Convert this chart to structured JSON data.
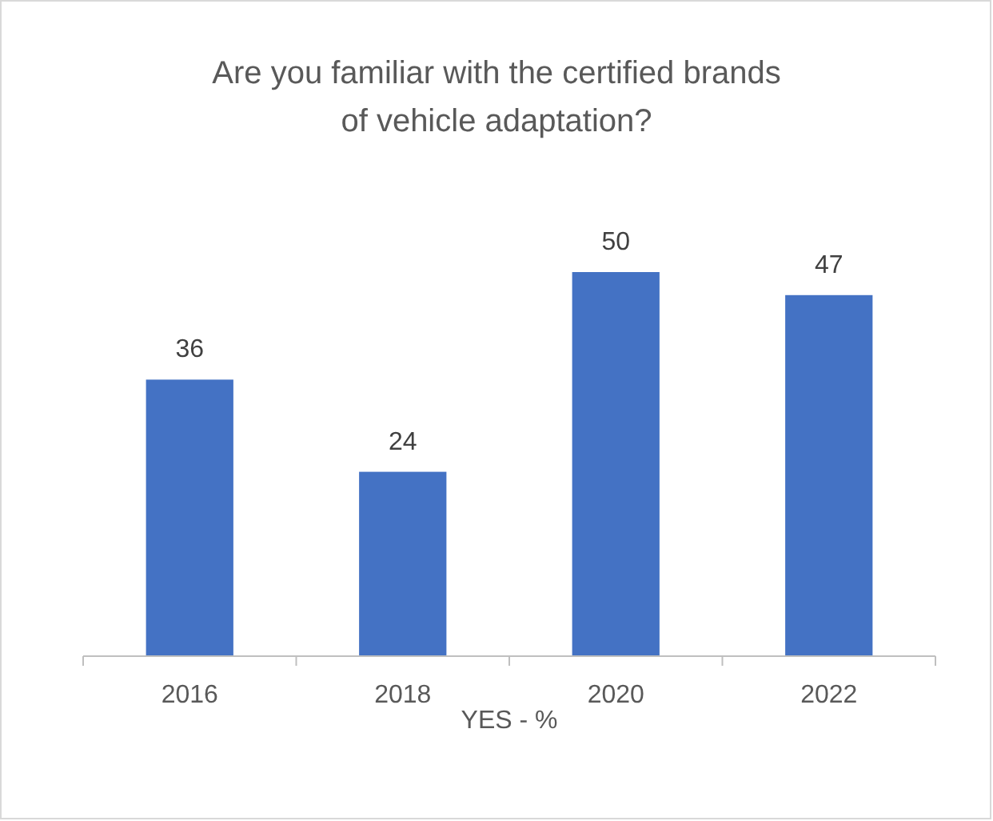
{
  "chart_data": {
    "type": "bar",
    "title": "Are you familiar with the certified brands of vehicle adaptation?",
    "xlabel": "YES - %",
    "categories": [
      "2016",
      "2018",
      "2020",
      "2022"
    ],
    "values": [
      36,
      24,
      50,
      47
    ],
    "color": "#4472c4",
    "data_labels": true,
    "grid": false,
    "legend": false
  }
}
